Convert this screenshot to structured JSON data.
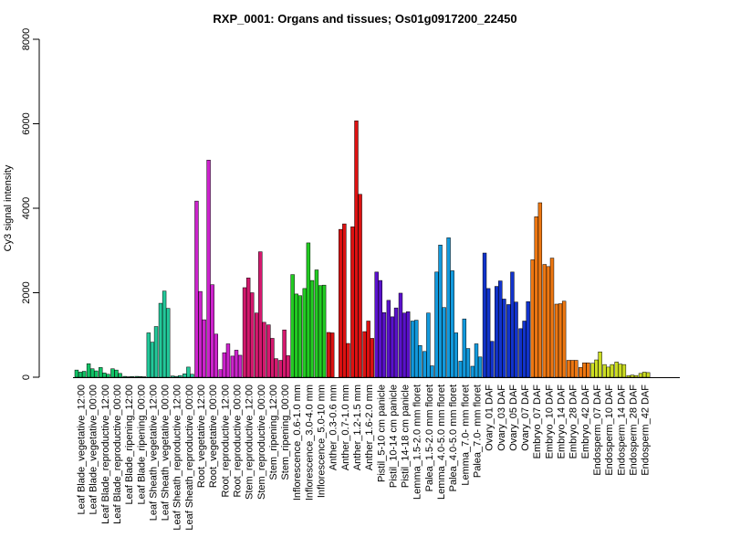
{
  "chart_data": {
    "type": "bar",
    "title": "RXP_0001: Organs and tissues; Os01g0917200_22450",
    "xlabel": "",
    "ylabel": "Cy3 signal intensity",
    "ylim": [
      0,
      8000
    ],
    "yticks": [
      0,
      2000,
      4000,
      6000,
      8000
    ],
    "grid": false,
    "legend": "none",
    "categories": [
      "Leaf Blade_vegetative_12:00",
      "Leaf Blade_vegetative_00:00",
      "Leaf Blade_reproductive_12:00",
      "Leaf Blade_reproductive_00:00",
      "Leaf Blade_ripening_12:00",
      "Leaf Blade_ripening_00:00",
      "Leaf Sheath_vegetative_12:00",
      "Leaf Sheath_vegetative_00:00",
      "Leaf Sheath_reproductive_12:00",
      "Leaf Sheath_reproductive_00:00",
      "Root_vegetative_12:00",
      "Root_vegetative_00:00",
      "Root_reproductive_12:00",
      "Root_reproductive_00:00",
      "Stem_reproductive_12:00",
      "Stem_reproductive_00:00",
      "Stem_ripening_12:00",
      "Stem_ripening_00:00",
      "Inflorescence_0.6-1.0 mm",
      "Inflorescence_3.0-4.0 mm",
      "Inflorescence_5.0-10 mm",
      "Anther_0.3-0.6 mm",
      "Anther_0.7-1.0 mm",
      "Anther_1.2-1.5 mm",
      "Anther_1.6-2.0 mm",
      "Pistil_5-10 cm panicle",
      "Pistil_10-14 cm panicle",
      "Pistil_14-18 cm panicle",
      "Lemma_1.5-2.0 mm floret",
      "Palea_1.5-2.0 mm floret",
      "Lemma_4.0-5.0 mm floret",
      "Palea_4.0-5.0 mm floret",
      "Lemma_7.0- mm floret",
      "Palea_7.0- mm floret",
      "Ovary_01 DAF",
      "Ovary_03 DAF",
      "Ovary_05 DAF",
      "Ovary_07 DAF",
      "Embryo_07 DAF",
      "Embryo_10 DAF",
      "Embryo_14 DAF",
      "Embryo_28 DAF",
      "Embryo_42 DAF",
      "Endosperm_07 DAF",
      "Endosperm_10 DAF",
      "Endosperm_14 DAF",
      "Endosperm_28 DAF",
      "Endosperm_42 DAF"
    ],
    "colors": [
      "#11c466",
      "#11c466",
      "#11c466",
      "#11c466",
      "#11c466",
      "#11c466",
      "#22c99a",
      "#22c99a",
      "#22c99a",
      "#22c99a",
      "#cc22cc",
      "#cc22cc",
      "#cc22cc",
      "#cc22cc",
      "#d4186e",
      "#d4186e",
      "#d4186e",
      "#d4186e",
      "#22cc22",
      "#22cc22",
      "#22cc22",
      "#dd1111",
      "#dd1111",
      "#dd1111",
      "#dd1111",
      "#5a11cc",
      "#5a11cc",
      "#5a11cc",
      "#1199dd",
      "#1199dd",
      "#1199dd",
      "#1199dd",
      "#1199dd",
      "#1199dd",
      "#1133cc",
      "#1133cc",
      "#1133cc",
      "#1133cc",
      "#ee7711",
      "#ee7711",
      "#ee7711",
      "#ee7711",
      "#ee7711",
      "#ccdd22",
      "#ccdd22",
      "#ccdd22",
      "#ccdd22",
      "#ccdd22"
    ],
    "values": [
      [
        170,
        120,
        140
      ],
      [
        320,
        200,
        150
      ],
      [
        230,
        100,
        70
      ],
      [
        200,
        170,
        90
      ],
      [
        20,
        10,
        15
      ],
      [
        20,
        15,
        10
      ],
      [
        1050,
        830,
        1200
      ],
      [
        1750,
        2040,
        1630
      ],
      [
        30,
        20,
        40
      ],
      [
        80,
        240,
        70
      ],
      [
        4170,
        2030,
        1360
      ],
      [
        5140,
        2190,
        1020
      ],
      [
        180,
        580,
        790
      ],
      [
        500,
        640,
        520
      ],
      [
        2120,
        2350,
        2000
      ],
      [
        1520,
        2970,
        1300
      ],
      [
        1240,
        920,
        440
      ],
      [
        400,
        1120,
        510
      ],
      [
        2430,
        1970,
        1930
      ],
      [
        2100,
        3180,
        2290
      ],
      [
        2540,
        2170,
        2180
      ],
      [
        1060,
        1050,
        0
      ],
      [
        3500,
        3630,
        800
      ],
      [
        3560,
        6070,
        4330
      ],
      [
        1080,
        1330,
        920
      ],
      [
        2490,
        2290,
        1530
      ],
      [
        1820,
        1430,
        1640
      ],
      [
        1990,
        1520,
        1550
      ],
      [
        1330,
        1350,
        750
      ],
      [
        610,
        1520,
        270
      ],
      [
        2490,
        3130,
        1650
      ],
      [
        3300,
        2520,
        1050
      ],
      [
        380,
        1380,
        680
      ],
      [
        260,
        790,
        480
      ],
      [
        2940,
        2100,
        850
      ],
      [
        2150,
        2280,
        1850
      ],
      [
        1720,
        2490,
        1780
      ],
      [
        1150,
        1330,
        1790
      ],
      [
        2780,
        3800,
        4130
      ],
      [
        2670,
        2620,
        2820
      ],
      [
        1730,
        1740,
        1800
      ],
      [
        400,
        400,
        400
      ],
      [
        230,
        340,
        340
      ],
      [
        330,
        410,
        600
      ],
      [
        300,
        240,
        300
      ],
      [
        360,
        310,
        300
      ],
      [
        40,
        50,
        40
      ],
      [
        90,
        120,
        110
      ]
    ]
  }
}
